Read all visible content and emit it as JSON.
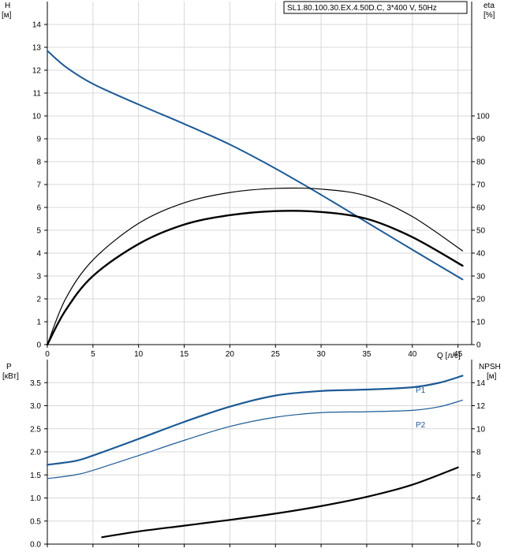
{
  "colors": {
    "head_curve": "#1c5a96",
    "power_curve": "#1c5a96",
    "eff_curve": "#000000",
    "npsh_curve": "#000000",
    "grid": "#d8d8d8"
  },
  "chart_data": [
    {
      "id": "qh",
      "type": "line",
      "title_box": "SL1.80.100.30.EX.4.50D.C, 3*400 V, 50Hz",
      "x_label": "Q [л/с]",
      "xlim": [
        0,
        46.5
      ],
      "x_ticks": [
        0,
        5,
        10,
        15,
        20,
        25,
        30,
        35,
        40,
        45
      ],
      "y_left_label": [
        "H",
        "[м]"
      ],
      "y_left_lim": [
        0,
        15
      ],
      "y_left_ticks": [
        0,
        1,
        2,
        3,
        4,
        5,
        6,
        7,
        8,
        9,
        10,
        11,
        12,
        13,
        14
      ],
      "y_right_label": [
        "eta",
        "[%]"
      ],
      "y_right_lim": [
        0,
        150
      ],
      "y_right_ticks": [
        0,
        10,
        20,
        30,
        40,
        50,
        60,
        70,
        80,
        90,
        100
      ],
      "grid": true,
      "series": [
        {
          "key": "H",
          "axis": "left",
          "color": "#1c5a96",
          "width": 2,
          "points": [
            [
              0,
              12.85
            ],
            [
              2,
              12.15
            ],
            [
              5,
              11.4
            ],
            [
              10,
              10.5
            ],
            [
              15,
              9.65
            ],
            [
              20,
              8.75
            ],
            [
              25,
              7.7
            ],
            [
              30,
              6.55
            ],
            [
              35,
              5.35
            ],
            [
              40,
              4.15
            ],
            [
              45.5,
              2.85
            ]
          ]
        },
        {
          "key": "eta1",
          "axis": "right",
          "color": "#000000",
          "width": 1.2,
          "points": [
            [
              0,
              0
            ],
            [
              2,
              20
            ],
            [
              5,
              37
            ],
            [
              10,
              53
            ],
            [
              15,
              62
            ],
            [
              20,
              66.5
            ],
            [
              25,
              68.3
            ],
            [
              30,
              68
            ],
            [
              35,
              65
            ],
            [
              40,
              56
            ],
            [
              45.5,
              41
            ]
          ]
        },
        {
          "key": "eta2",
          "axis": "right",
          "color": "#000000",
          "width": 2.4,
          "points": [
            [
              0,
              0
            ],
            [
              2,
              15
            ],
            [
              5,
              30
            ],
            [
              10,
              44
            ],
            [
              15,
              52.5
            ],
            [
              20,
              56.6
            ],
            [
              25,
              58.4
            ],
            [
              30,
              58
            ],
            [
              35,
              55
            ],
            [
              40,
              47
            ],
            [
              45.5,
              34.5
            ]
          ]
        }
      ]
    },
    {
      "id": "power",
      "type": "line",
      "y_left_label": [
        "P",
        "[кВт]"
      ],
      "y_left_lim": [
        0,
        4.0
      ],
      "y_left_ticks": [
        0,
        0.5,
        1.0,
        1.5,
        2.0,
        2.5,
        3.0,
        3.5
      ],
      "y_left_tick_labels": [
        "0.0",
        "0.5",
        "1.0",
        "1.5",
        "2.0",
        "2.5",
        "3.0",
        "3.5"
      ],
      "y_right_label": [
        "NPSH",
        "[м]"
      ],
      "y_right_lim": [
        0,
        16
      ],
      "y_right_ticks": [
        0,
        2,
        4,
        6,
        8,
        10,
        12,
        14
      ],
      "xlim": [
        0,
        46.5
      ],
      "x_ticks": [
        0,
        5,
        10,
        15,
        20,
        25,
        30,
        35,
        40,
        45
      ],
      "grid": true,
      "series": [
        {
          "name": "P1",
          "axis": "left",
          "color": "#1c5a96",
          "width": 2.2,
          "points": [
            [
              0,
              1.72
            ],
            [
              3,
              1.8
            ],
            [
              5,
              1.92
            ],
            [
              10,
              2.28
            ],
            [
              15,
              2.65
            ],
            [
              20,
              2.98
            ],
            [
              25,
              3.22
            ],
            [
              30,
              3.32
            ],
            [
              35,
              3.35
            ],
            [
              40,
              3.4
            ],
            [
              43,
              3.5
            ],
            [
              45.5,
              3.65
            ]
          ]
        },
        {
          "name": "P2",
          "axis": "left",
          "color": "#1c5a96",
          "width": 1.2,
          "points": [
            [
              0,
              1.42
            ],
            [
              3,
              1.5
            ],
            [
              5,
              1.6
            ],
            [
              10,
              1.92
            ],
            [
              15,
              2.25
            ],
            [
              20,
              2.55
            ],
            [
              25,
              2.75
            ],
            [
              30,
              2.85
            ],
            [
              35,
              2.87
            ],
            [
              40,
              2.9
            ],
            [
              43,
              2.98
            ],
            [
              45.5,
              3.12
            ]
          ]
        },
        {
          "key": "NPSH",
          "axis": "right",
          "color": "#000000",
          "width": 2.2,
          "points": [
            [
              6,
              0.6
            ],
            [
              10,
              1.1
            ],
            [
              15,
              1.6
            ],
            [
              20,
              2.1
            ],
            [
              25,
              2.65
            ],
            [
              30,
              3.3
            ],
            [
              35,
              4.1
            ],
            [
              40,
              5.15
            ],
            [
              45,
              6.65
            ]
          ]
        }
      ]
    }
  ]
}
